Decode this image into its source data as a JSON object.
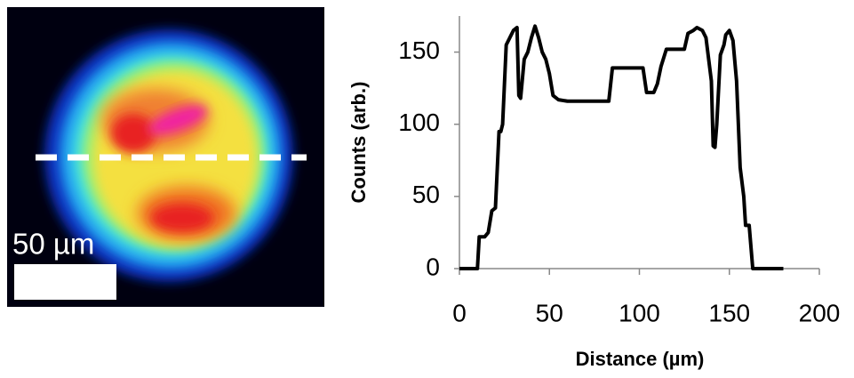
{
  "image": {
    "scale_label": "50 µm"
  },
  "chart_data": {
    "type": "line",
    "xlabel": "Distance (µm)",
    "ylabel": "Counts (arb.)",
    "x": [
      0,
      10,
      11,
      14,
      16,
      18,
      20,
      22,
      23,
      24,
      26,
      28,
      30,
      32,
      33,
      34,
      36,
      38,
      40,
      42,
      44,
      46,
      48,
      50,
      52,
      55,
      60,
      70,
      80,
      83,
      85,
      90,
      100,
      102,
      104,
      108,
      110,
      112,
      115,
      120,
      125,
      127,
      130,
      132,
      135,
      137,
      140,
      141,
      142,
      143,
      145,
      147,
      148,
      150,
      152,
      154,
      156,
      158,
      159,
      161,
      163,
      166,
      180
    ],
    "values": [
      0,
      0,
      22,
      22,
      25,
      40,
      42,
      95,
      95,
      100,
      155,
      160,
      165,
      167,
      120,
      118,
      145,
      150,
      160,
      168,
      160,
      150,
      145,
      135,
      120,
      117,
      116,
      116,
      116,
      116,
      139,
      139,
      139,
      139,
      122,
      122,
      128,
      140,
      152,
      152,
      152,
      163,
      165,
      167,
      165,
      160,
      130,
      85,
      84,
      100,
      148,
      155,
      162,
      165,
      158,
      130,
      70,
      50,
      30,
      30,
      0,
      0,
      0
    ],
    "color": "#000000",
    "xlim": [
      0,
      200
    ],
    "xticks": [
      0,
      50,
      100,
      150,
      200
    ],
    "ylim": [
      0,
      175
    ],
    "yticks": [
      0,
      50,
      100,
      150
    ]
  }
}
